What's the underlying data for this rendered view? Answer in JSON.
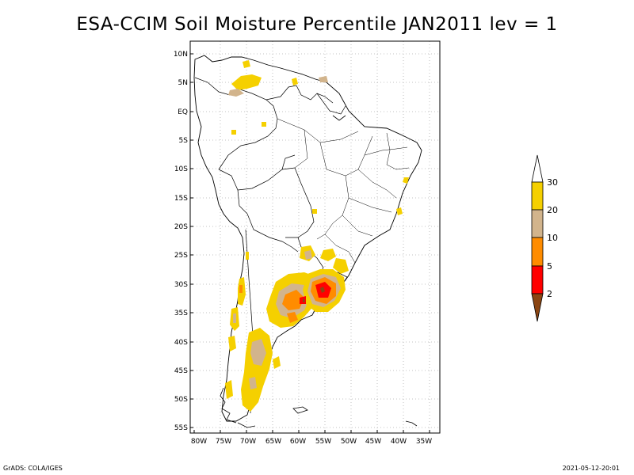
{
  "title": "ESA-CCIM Soil Moisture Percentile JAN2011 lev = 1",
  "footer": {
    "left": "GrADS: COLA/IGES",
    "right": "2021-05-12-20:01"
  },
  "map": {
    "lon_range": [
      -80,
      -32
    ],
    "lat_range": [
      -56,
      11
    ],
    "lon_ticks": [
      "80W",
      "75W",
      "70W",
      "65W",
      "60W",
      "55W",
      "50W",
      "45W",
      "40W",
      "35W"
    ],
    "lat_ticks": [
      "10N",
      "5N",
      "EQ",
      "5S",
      "10S",
      "15S",
      "20S",
      "25S",
      "30S",
      "35S",
      "40S",
      "45S",
      "50S",
      "55S"
    ],
    "grid": "dotted"
  },
  "colorbar": {
    "labels": [
      "30",
      "20",
      "10",
      "5",
      "2"
    ],
    "colors": {
      "above_30": "#ffffff",
      "20_30": "#f5d000",
      "10_20": "#d2b48c",
      "5_10": "#ff8c00",
      "2_5": "#ff0000",
      "below_2": "#8b4513"
    }
  }
}
